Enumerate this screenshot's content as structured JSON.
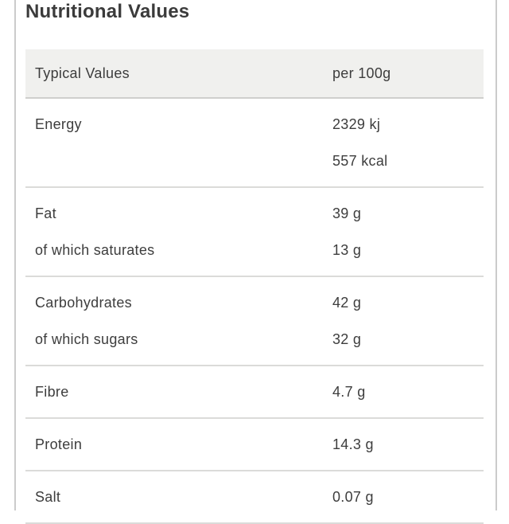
{
  "section": {
    "title": "Nutritional Values"
  },
  "table": {
    "header": {
      "label": "Typical Values",
      "value": "per 100g"
    },
    "sections": [
      {
        "rows": [
          {
            "label": "Energy",
            "value": "2329 kj"
          },
          {
            "label": "",
            "value": "557 kcal"
          }
        ]
      },
      {
        "rows": [
          {
            "label": "Fat",
            "value": "39 g"
          },
          {
            "label": "of which saturates",
            "value": "13 g"
          }
        ]
      },
      {
        "rows": [
          {
            "label": "Carbohydrates",
            "value": "42 g"
          },
          {
            "label": "of which sugars",
            "value": "32 g"
          }
        ]
      },
      {
        "rows": [
          {
            "label": "Fibre",
            "value": "4.7 g"
          }
        ]
      },
      {
        "rows": [
          {
            "label": "Protein",
            "value": "14.3 g"
          }
        ]
      },
      {
        "rows": [
          {
            "label": "Salt",
            "value": "0.07 g"
          }
        ]
      }
    ]
  },
  "colors": {
    "text": "#3d3d3d",
    "title_text": "#3b3b3b",
    "header_background": "#f0f0ee",
    "header_divider": "#cfcfcd",
    "row_divider": "#dbdbd9",
    "page_edge_line": "#cbcbcb"
  }
}
